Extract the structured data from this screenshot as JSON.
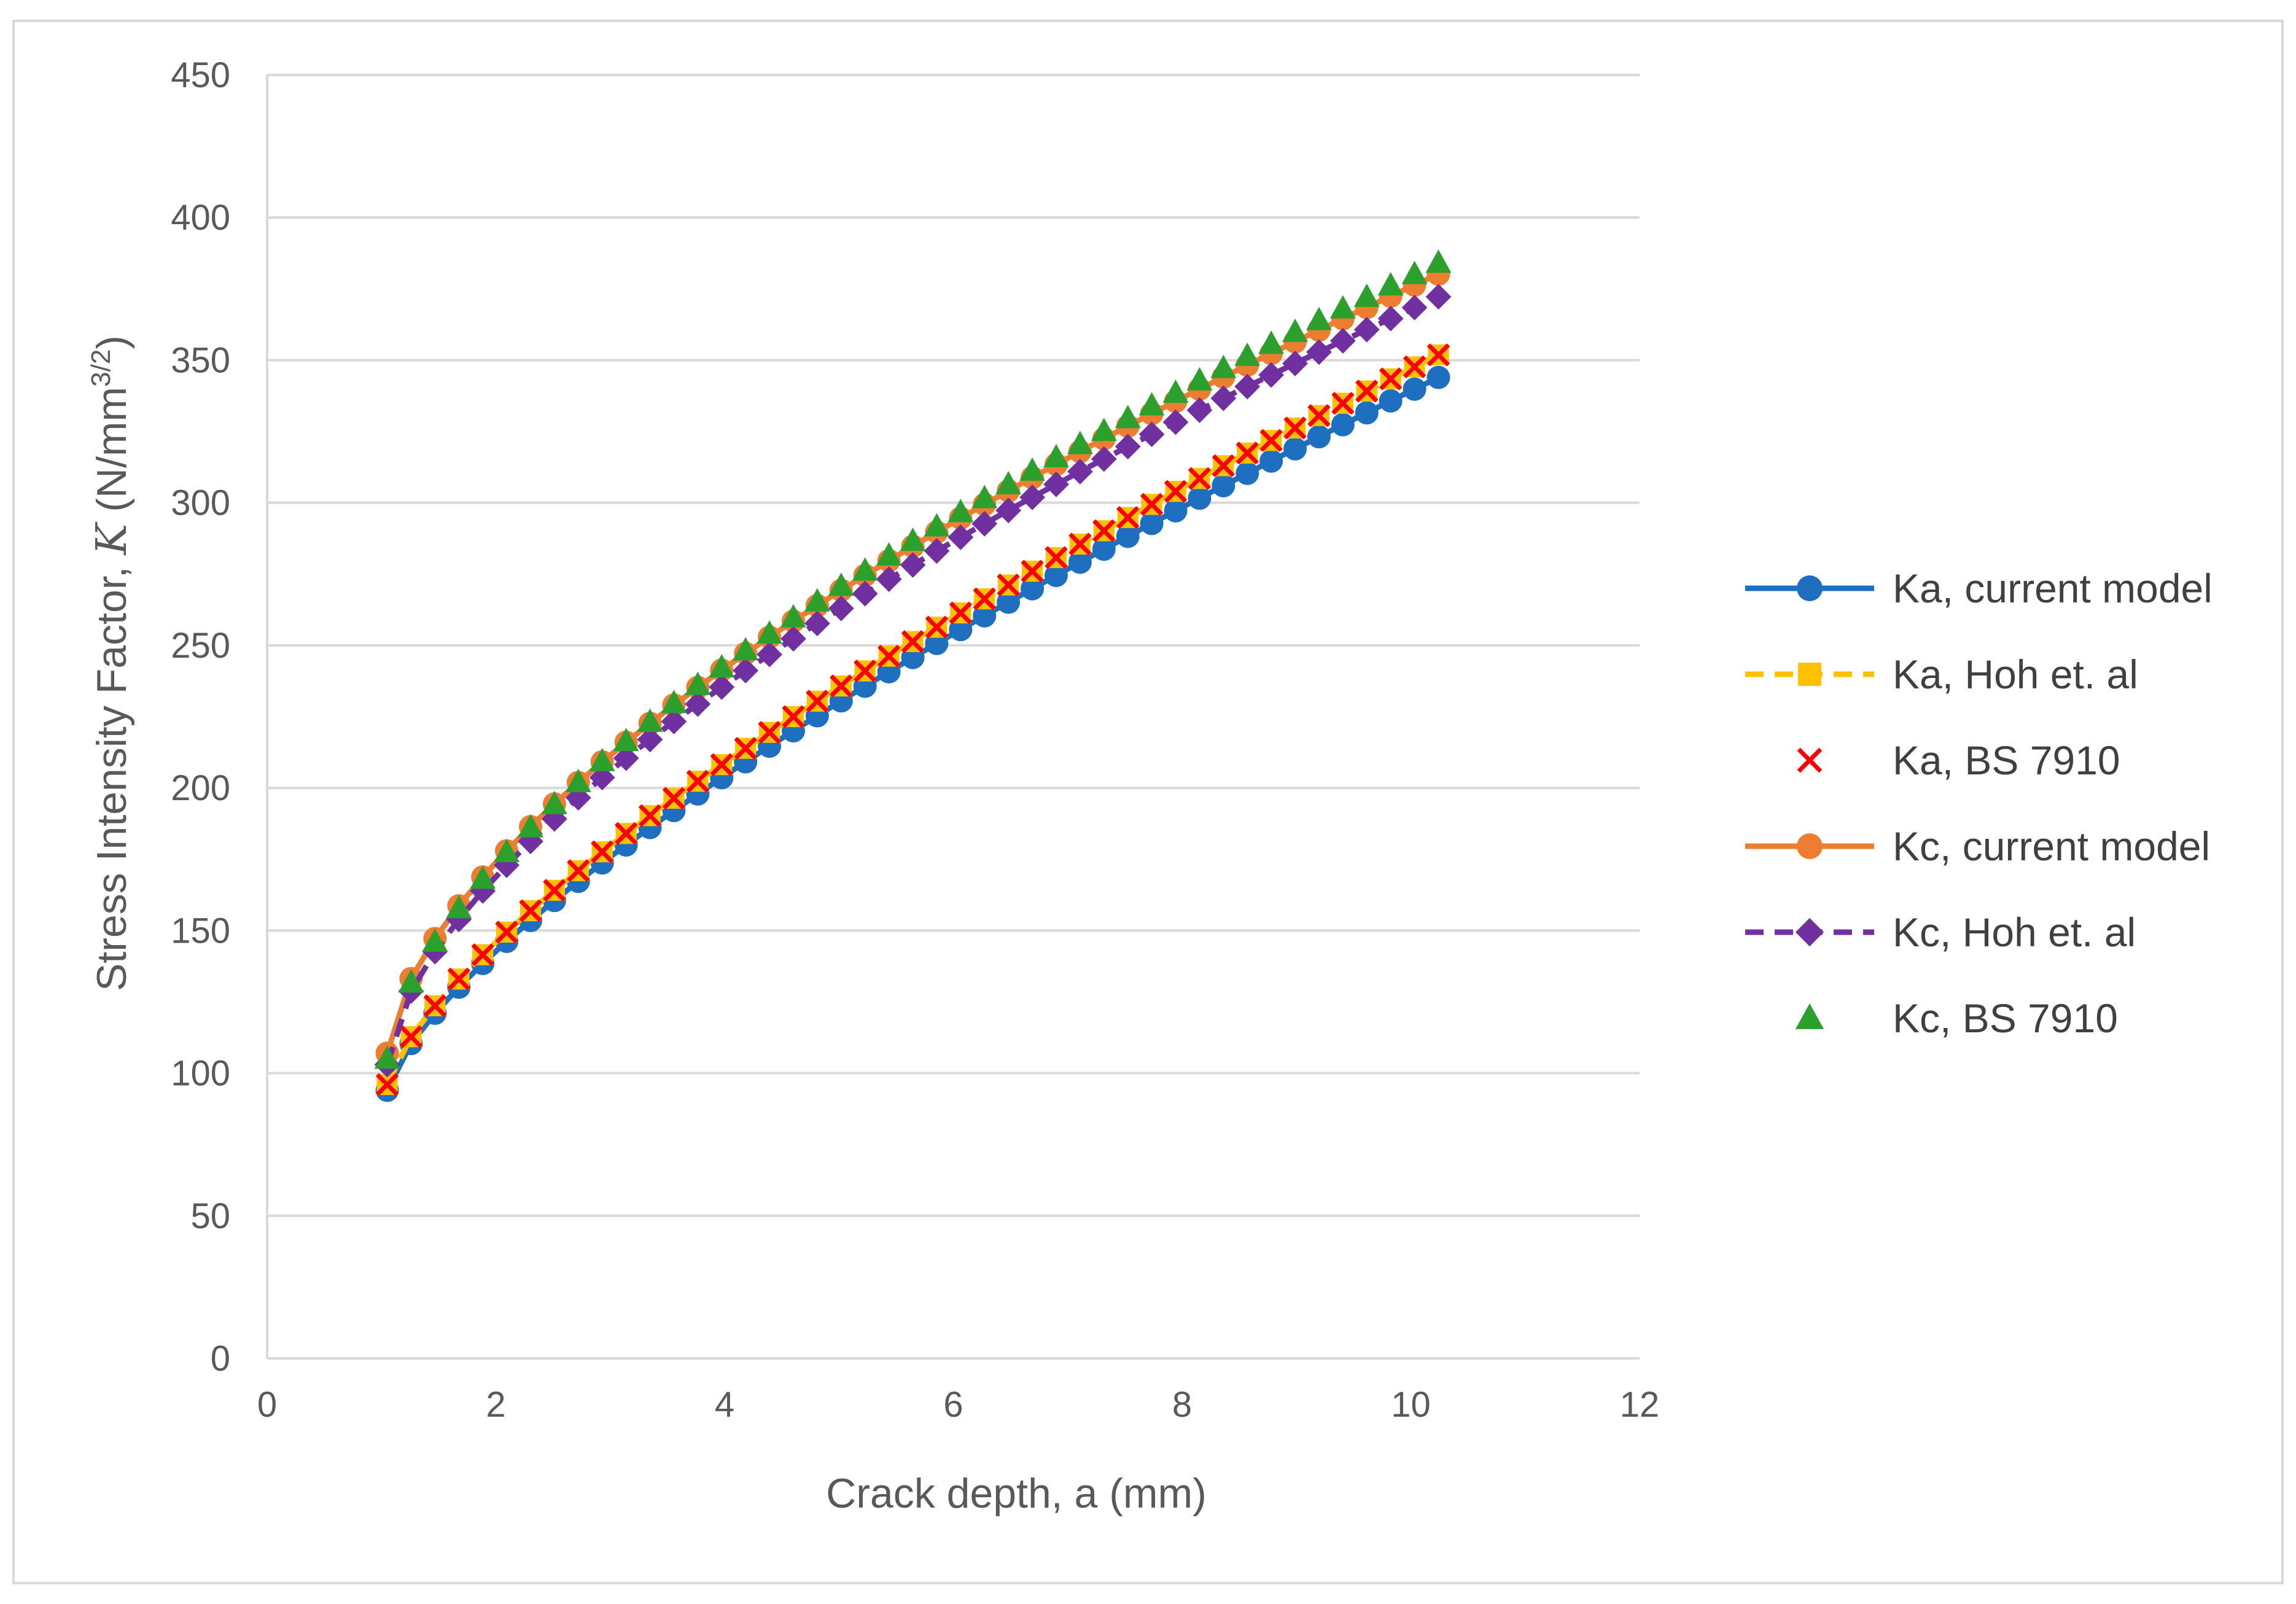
{
  "chart_data": {
    "type": "line",
    "xlabel": "Crack depth, a (mm)",
    "ylabel": {
      "prefix": "Stress Intensity Factor, ",
      "symbol": "K",
      "unit_open": " (N/mm",
      "unit_sup": "3/2",
      "unit_close": ")"
    },
    "xlim": [
      0,
      12
    ],
    "ylim": [
      0,
      450
    ],
    "x_ticks": [
      "0",
      "2",
      "4",
      "6",
      "8",
      "10",
      "12"
    ],
    "y_ticks": [
      "0",
      "50",
      "100",
      "150",
      "200",
      "250",
      "300",
      "350",
      "400",
      "450"
    ],
    "grid": "horizontal",
    "legend_position": "right",
    "x_range": {
      "start": 1.05,
      "end": 10.45,
      "step": 0.2089
    },
    "series": [
      {
        "name": "Ka, current model",
        "color": "#1f6fc0",
        "line": "solid",
        "marker": "circle",
        "y_start": 94,
        "y_end": 348,
        "shape": 0.72
      },
      {
        "name": "Ka, Hoh et. al",
        "color": "#ffc000",
        "line": "dashed",
        "marker": "square",
        "y_start": 96,
        "y_end": 356,
        "shape": 0.72
      },
      {
        "name": "Ka, BS 7910",
        "color": "#ff0000",
        "line": "none",
        "marker": "x",
        "y_start": 96,
        "y_end": 356,
        "shape": 0.72
      },
      {
        "name": "Kc, current model",
        "color": "#ed7d31",
        "line": "solid",
        "marker": "circle",
        "y_start": 107,
        "y_end": 384,
        "shape": 0.62
      },
      {
        "name": "Kc, Hoh et. al",
        "color": "#7030a0",
        "line": "dashed",
        "marker": "diamond",
        "y_start": 103,
        "y_end": 376,
        "shape": 0.62
      },
      {
        "name": "Kc, BS 7910",
        "color": "#2ca02c",
        "line": "none",
        "marker": "triangle",
        "y_start": 105,
        "y_end": 388,
        "shape": 0.62
      }
    ]
  }
}
